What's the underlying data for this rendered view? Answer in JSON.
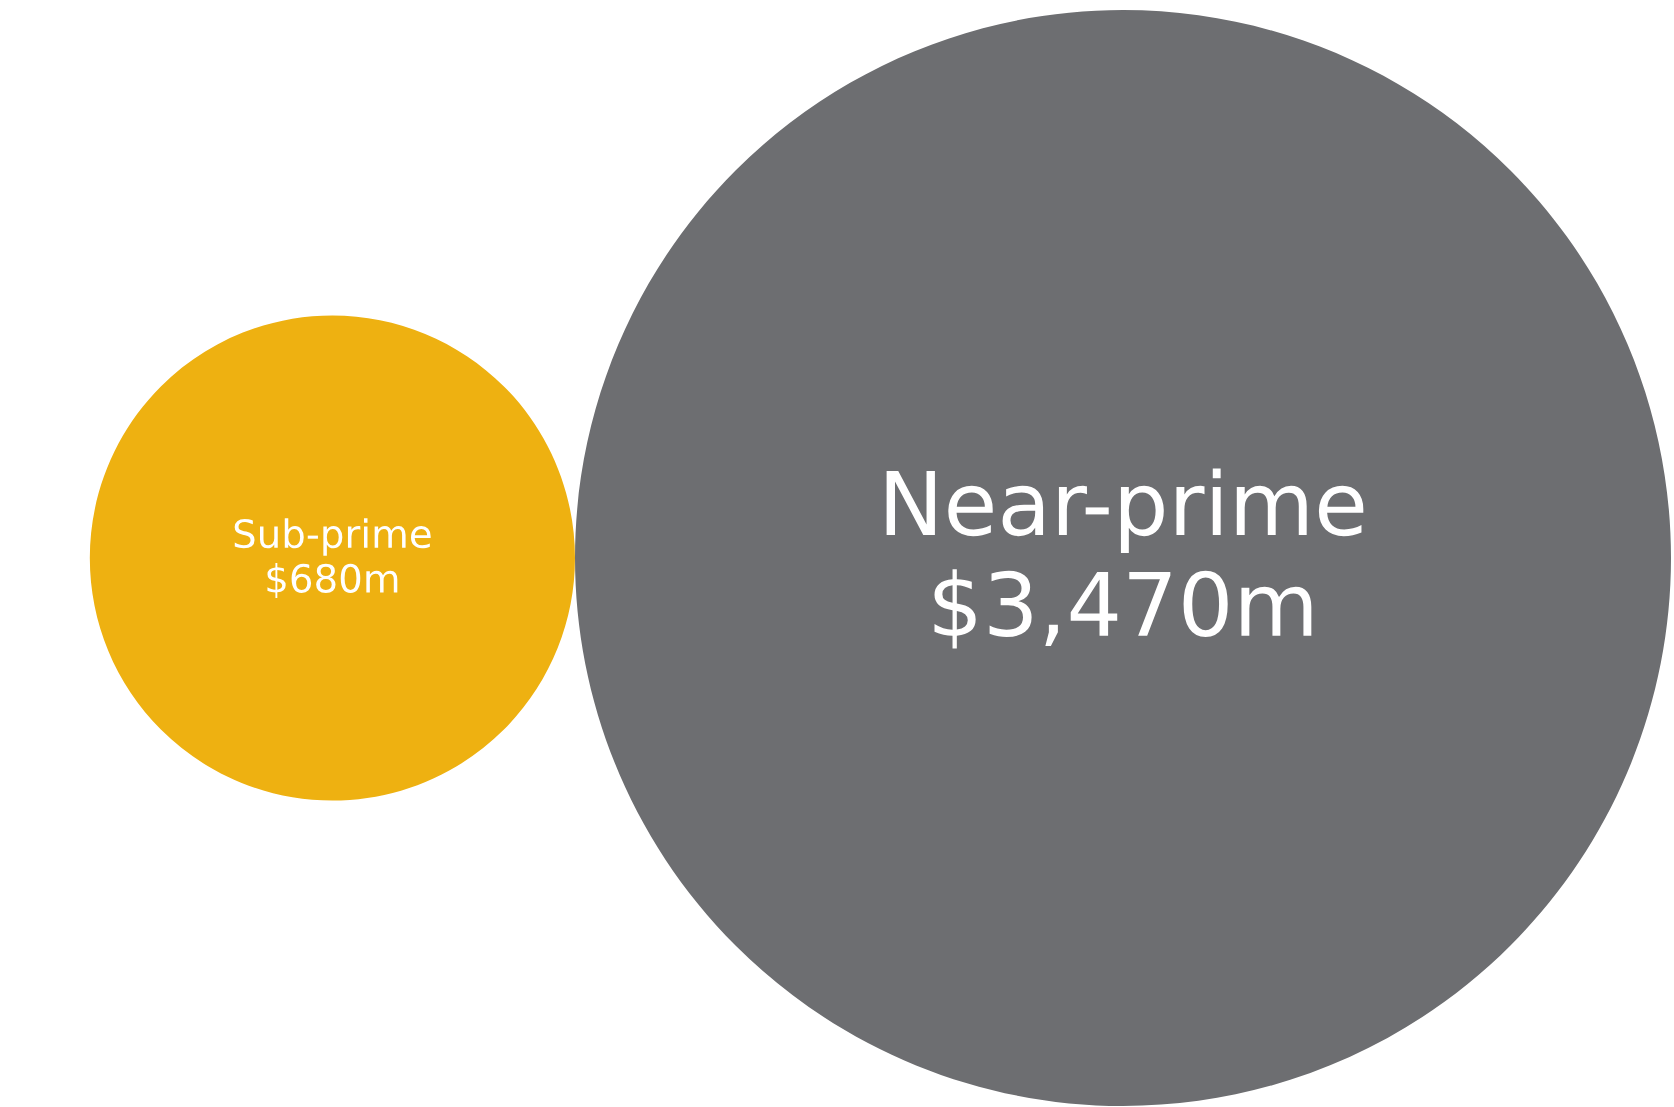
{
  "chart_data": {
    "type": "other",
    "categories": [
      "Sub-prime",
      "Near-prime"
    ],
    "values": [
      680,
      3470
    ],
    "value_labels": [
      "$680m",
      "$3,470m"
    ],
    "colors": [
      "#eeb111",
      "#6d6e71"
    ]
  }
}
